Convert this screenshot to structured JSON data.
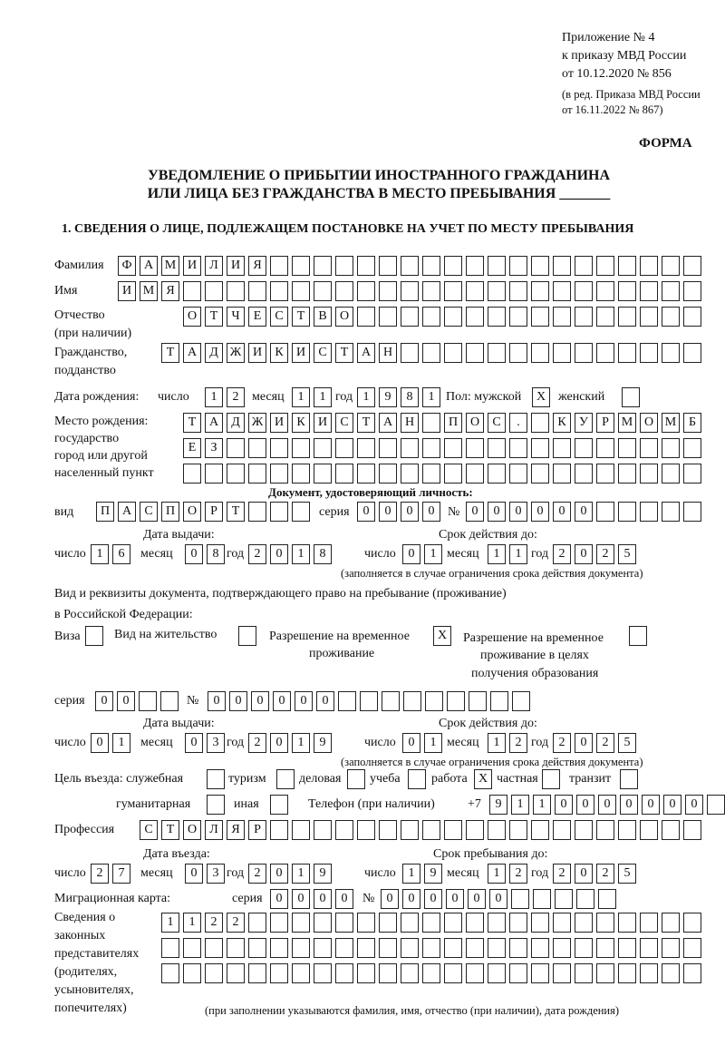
{
  "header": {
    "appendix": "Приложение № 4",
    "order_line": "к приказу МВД России",
    "order_date": "от 10.12.2020 № 856",
    "edition_1": "(в ред. Приказа МВД России",
    "edition_2": "от 16.11.2022 № 867)",
    "form_label": "ФОРМА",
    "title_1": "УВЕДОМЛЕНИЕ О ПРИБЫТИИ ИНОСТРАННОГО ГРАЖДАНИНА",
    "title_2": "ИЛИ ЛИЦА БЕЗ ГРАЖДАНСТВА В МЕСТО ПРЕБЫВАНИЯ _______",
    "section_1": "1. СВЕДЕНИЯ О ЛИЦЕ, ПОДЛЕЖАЩЕМ ПОСТАНОВКЕ НА УЧЕТ ПО МЕСТУ ПРЕБЫВАНИЯ"
  },
  "labels": {
    "surname": "Фамилия",
    "name": "Имя",
    "patronymic_1": "Отчество",
    "patronymic_2": "(при наличии)",
    "citizenship_1": "Гражданство,",
    "citizenship_2": "подданство",
    "birth_date": "Дата рождения:",
    "day": "число",
    "month": "месяц",
    "year": "год",
    "sex": "Пол: мужской",
    "female": "женский",
    "birthplace_1": "Место рождения:",
    "birthplace_2": "государство",
    "birthplace_3": "город или другой",
    "birthplace_4": "населенный пункт",
    "id_doc": "Документ, удостоверяющий личность:",
    "kind": "вид",
    "series": "серия",
    "number": "№",
    "issue_date": "Дата выдачи:",
    "valid_until": "Срок действия до:",
    "validity_note": "(заполняется в случае ограничения срока действия документа)",
    "stay_doc_1": "Вид и реквизиты документа, подтверждающего право на пребывание (проживание)",
    "stay_doc_2": "в Российской Федерации:",
    "visa": "Виза",
    "residence_permit": "Вид на жительство",
    "temp_residence_1": "Разрешение на временное",
    "temp_residence_2": "проживание",
    "temp_edu_1": "Разрешение на временное",
    "temp_edu_2": "проживание в целях",
    "temp_edu_3": "получения образования",
    "purpose": "Цель въезда: служебная",
    "tourism": "туризм",
    "business": "деловая",
    "study": "учеба",
    "work": "работа",
    "private": "частная",
    "transit": "транзит",
    "humanitarian": "гуманитарная",
    "other": "иная",
    "phone": "Телефон (при наличии)",
    "phone_prefix": "+7",
    "profession": "Профессия",
    "entry_date": "Дата въезда:",
    "stay_until": "Срок пребывания до:",
    "migration_card": "Миграционная карта:",
    "reps_1": "Сведения о",
    "reps_2": "законных",
    "reps_3": "представителях",
    "reps_4": "(родителях,",
    "reps_5": "усыновителях,",
    "reps_6": "попечителях)",
    "reps_note": "(при заполнении указываются фамилия, имя, отчество (при наличии), дата рождения)"
  },
  "fields": {
    "surname": "ФАМИЛИЯ",
    "name": "ИМЯ",
    "patronymic": "ОТЧЕСТВО",
    "citizenship": "ТАДЖИКИСТАН",
    "birth_day": "12",
    "birth_month": "11",
    "birth_year": "1981",
    "sex_male": "X",
    "sex_female": "",
    "birthplace_1": "ТАДЖИКИСТАН ПОС. КУРМОМБ",
    "birthplace_2": "ЕЗ",
    "birthplace_3": "",
    "id_kind": "ПАСПОРТ",
    "id_series": "0000",
    "id_number": "000000",
    "id_issue_day": "16",
    "id_issue_month": "08",
    "id_issue_year": "2018",
    "id_valid_day": "01",
    "id_valid_month": "11",
    "id_valid_year": "2025",
    "doc_visa": "",
    "doc_residence_permit": "",
    "doc_temp_residence": "X",
    "doc_temp_edu": "",
    "doc_series": "00",
    "doc_number": "000000",
    "doc_issue_day": "01",
    "doc_issue_month": "03",
    "doc_issue_year": "2019",
    "doc_valid_day": "01",
    "doc_valid_month": "12",
    "doc_valid_year": "2025",
    "purpose_official": "",
    "purpose_tourism": "",
    "purpose_business": "",
    "purpose_study": "",
    "purpose_work": "X",
    "purpose_private": "",
    "purpose_transit": "",
    "purpose_humanitarian": "",
    "purpose_other": "",
    "phone": "9110000000",
    "profession": "СТОЛЯР",
    "entry_day": "27",
    "entry_month": "03",
    "entry_year": "2019",
    "stay_day": "19",
    "stay_month": "12",
    "stay_year": "2025",
    "mc_series": "0000",
    "mc_number": "000000",
    "reps_1": "1122",
    "reps_2": "",
    "reps_3": ""
  }
}
